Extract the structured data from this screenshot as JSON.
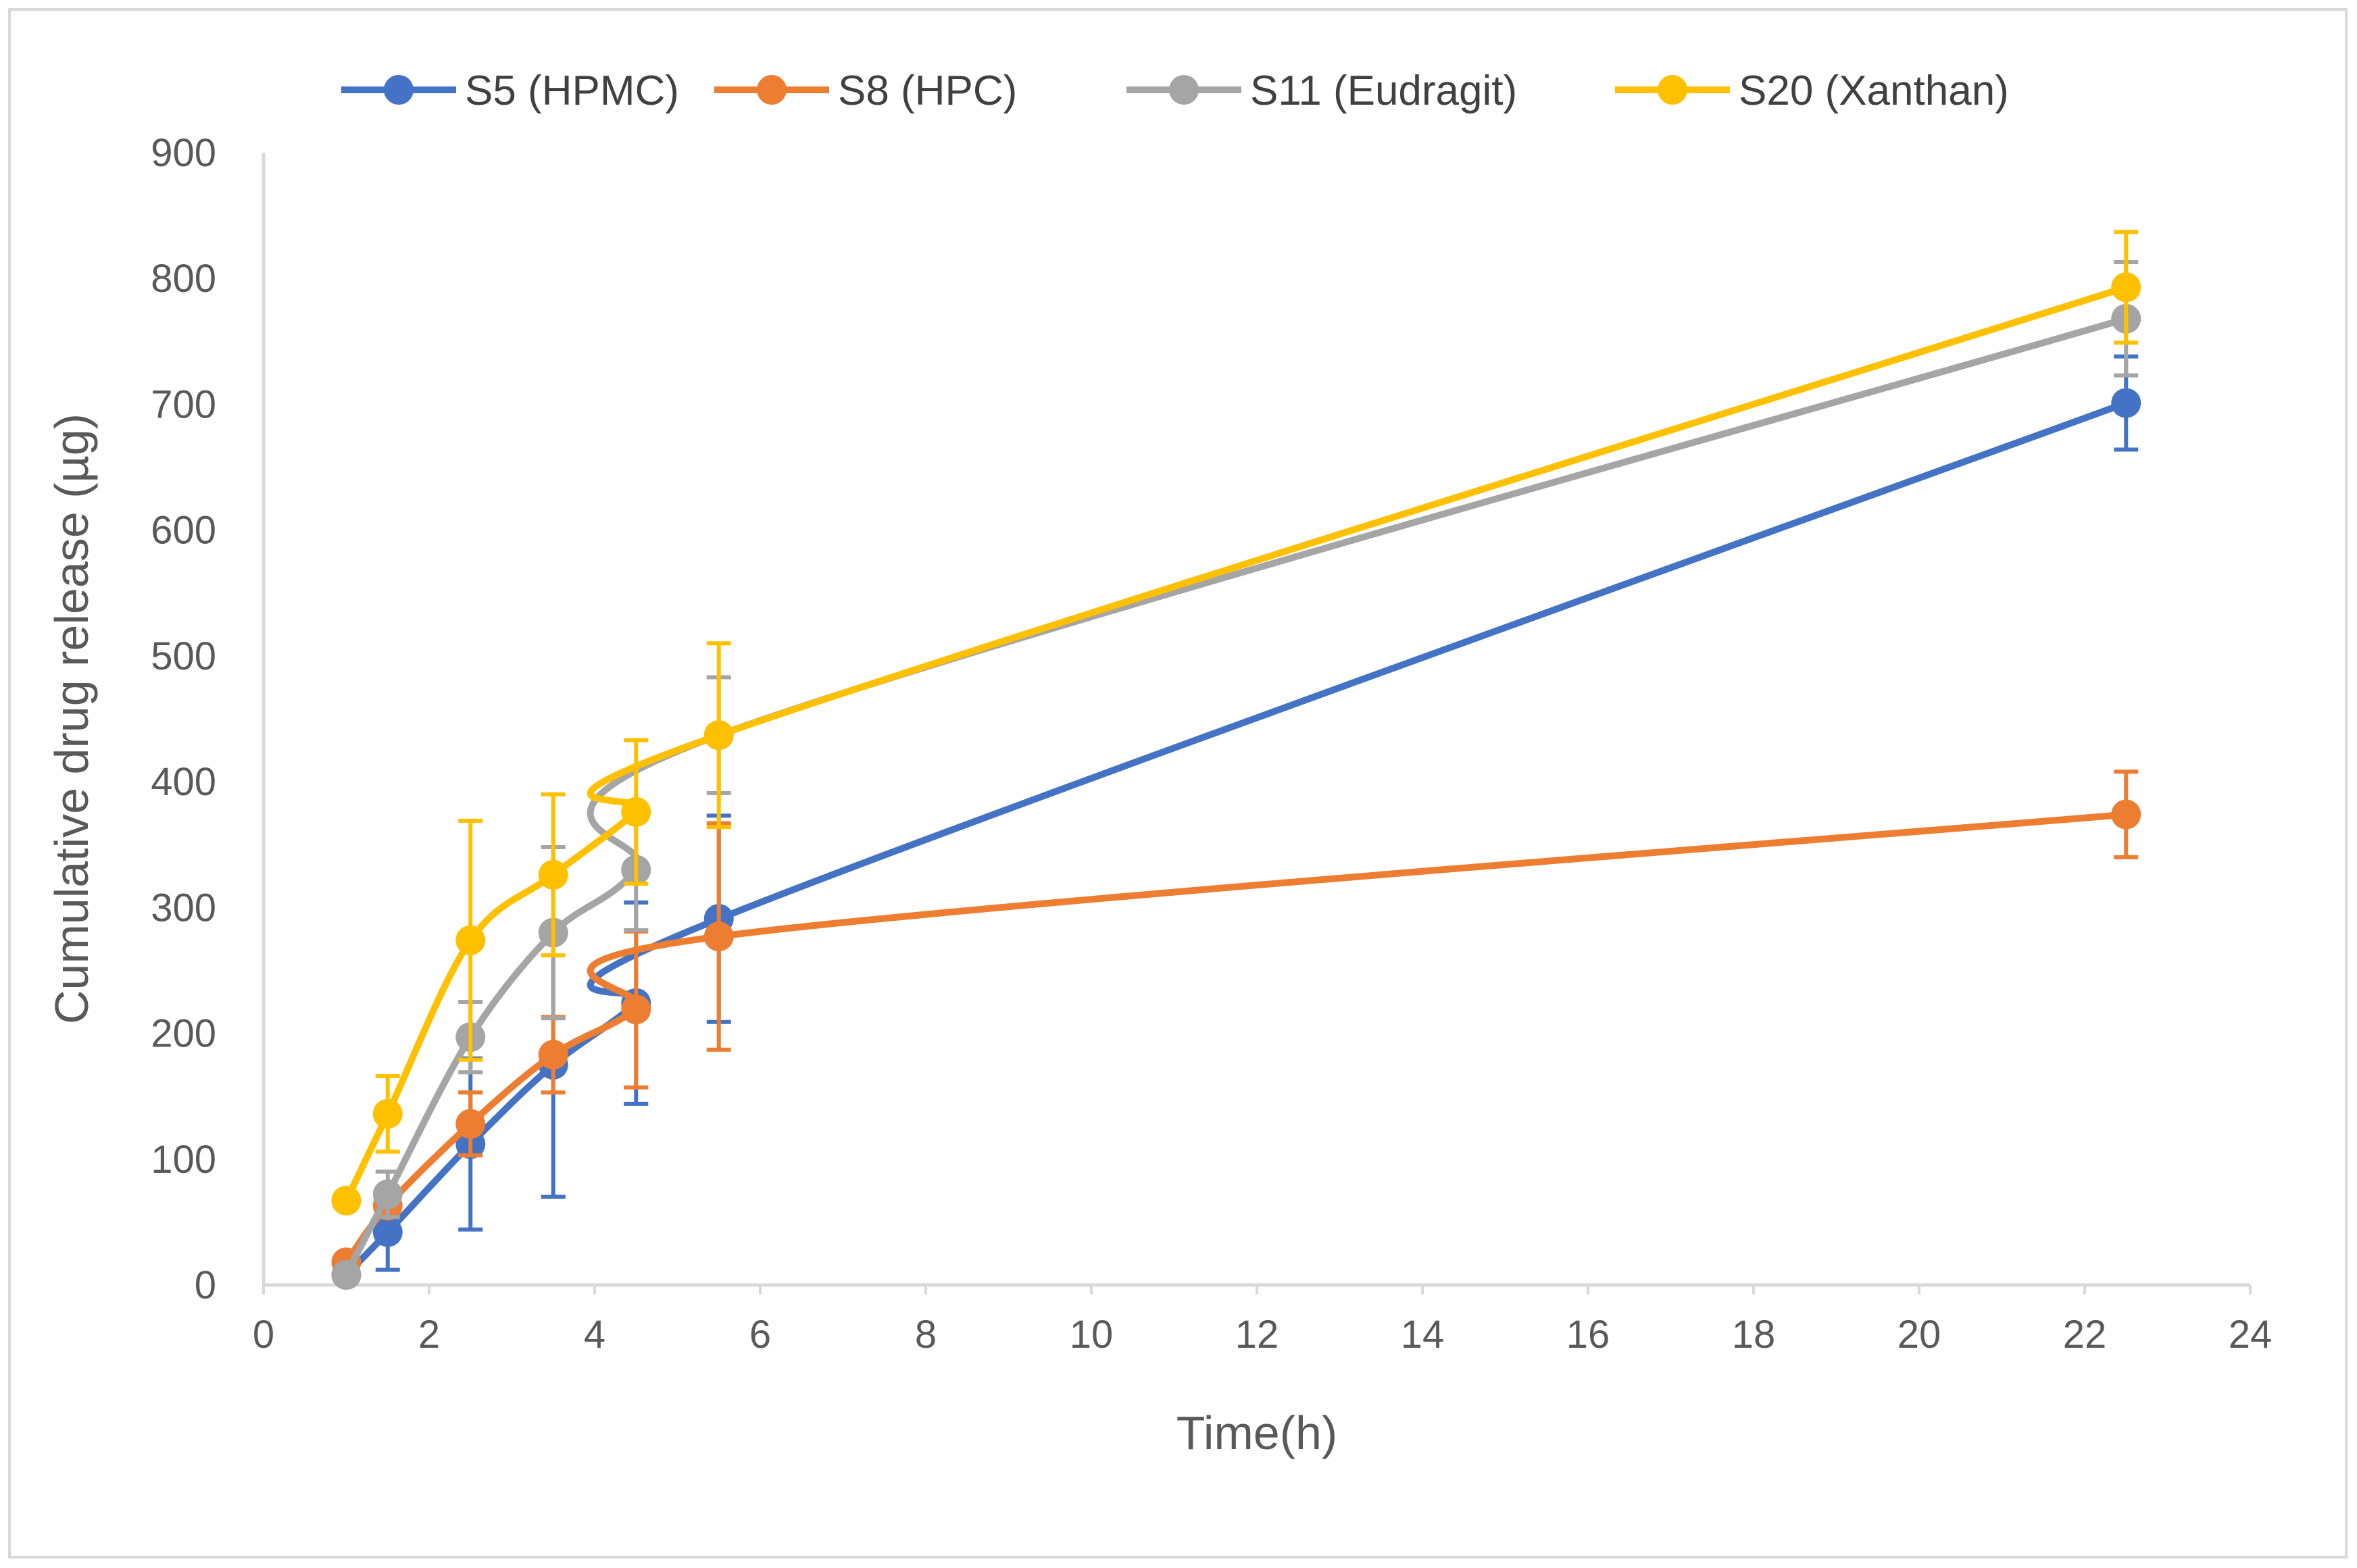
{
  "chart_data": {
    "type": "line",
    "title": "",
    "xlabel": "Time(h)",
    "ylabel": "Cumulative drug release (µg)",
    "xlim": [
      0,
      24
    ],
    "ylim": [
      0,
      900
    ],
    "xticks": [
      0,
      2,
      4,
      6,
      8,
      10,
      12,
      14,
      16,
      18,
      20,
      22,
      24
    ],
    "yticks": [
      0,
      100,
      200,
      300,
      400,
      500,
      600,
      700,
      800,
      900
    ],
    "xtick_labels": [
      "0",
      "2",
      "4",
      "6",
      "8",
      "10",
      "12",
      "14",
      "16",
      "18",
      "20",
      "22",
      "24"
    ],
    "ytick_labels": [
      "0",
      "100",
      "200",
      "300",
      "400",
      "500",
      "600",
      "700",
      "800",
      "900"
    ],
    "grid": false,
    "legend_position": "top",
    "x": [
      1,
      1.5,
      2.5,
      3.5,
      4.5,
      5.5,
      22.5
    ],
    "series": [
      {
        "name": "S5 (HPMC)",
        "color": "#4472C4",
        "values": [
          8,
          42,
          112,
          175,
          224,
          291,
          701
        ],
        "errors": [
          0,
          30,
          68,
          105,
          80,
          82,
          37
        ]
      },
      {
        "name": "S8 (HPC)",
        "color": "#ED7D31",
        "values": [
          18,
          63,
          128,
          183,
          219,
          277,
          374
        ],
        "errors": [
          0,
          0,
          25,
          30,
          62,
          90,
          34
        ]
      },
      {
        "name": "S11 (Eudragit)",
        "color": "#A5A5A5",
        "values": [
          8,
          72,
          197,
          280,
          330,
          437,
          768
        ],
        "errors": [
          0,
          18,
          28,
          68,
          48,
          46,
          45
        ]
      },
      {
        "name": "S20 (Xanthan)",
        "color": "#FFC000",
        "values": [
          67,
          136,
          274,
          326,
          376,
          437,
          793
        ],
        "errors": [
          0,
          30,
          95,
          64,
          57,
          73,
          44
        ]
      }
    ]
  }
}
